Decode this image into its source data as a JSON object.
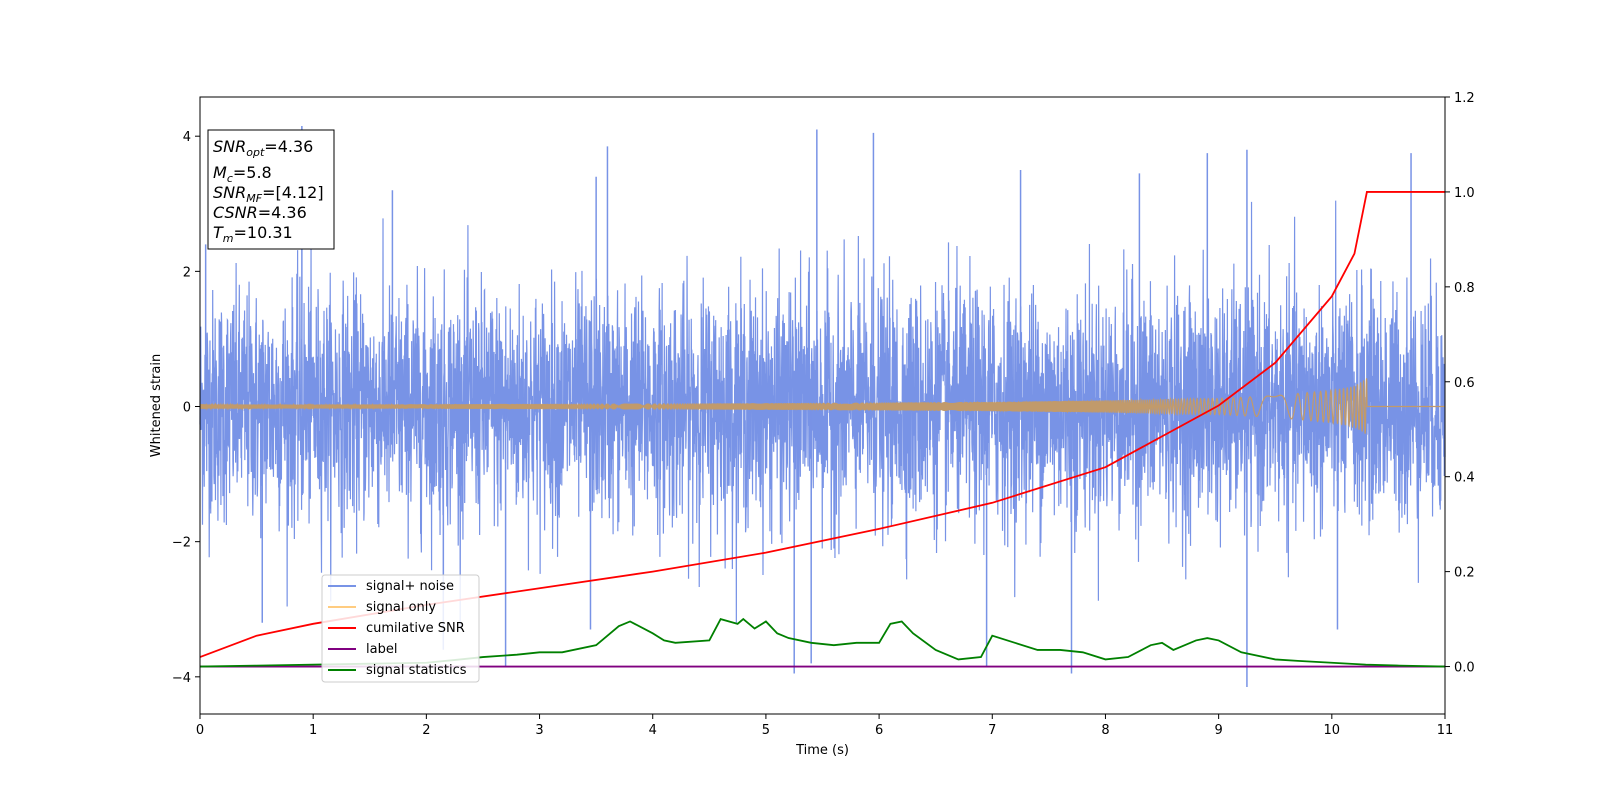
{
  "chart_data": {
    "type": "line",
    "xlabel": "Time (s)",
    "ylabel": "Whitened strain",
    "xlim": [
      0,
      11
    ],
    "ylim": [
      -4.55,
      4.58
    ],
    "y2lim": [
      -0.1,
      1.2
    ],
    "x_ticks": [
      0,
      1,
      2,
      3,
      4,
      5,
      6,
      7,
      8,
      9,
      10,
      11
    ],
    "y_ticks": [
      -4,
      -2,
      0,
      2,
      4
    ],
    "y2_ticks": [
      "0.0",
      "0.2",
      "0.4",
      "0.6",
      "0.8",
      "1.0",
      "1.2"
    ],
    "grid": false,
    "legend_position": "lower-left",
    "colors": {
      "noise": "#7893e6",
      "signal_only": "#c19a6b",
      "signal_only_legend": "#ffcc80",
      "cumulative": "#ff0000",
      "label": "#800080",
      "statistics": "#008000"
    },
    "series": [
      {
        "name": "signal+ noise",
        "axis": "left",
        "style": "dense noise band",
        "band_typical": [
          -1.9,
          1.9
        ],
        "peaks": [
          {
            "x": 0.05,
            "y": 2.4
          },
          {
            "x": 0.9,
            "y": 4.15
          },
          {
            "x": 1.7,
            "y": 3.2
          },
          {
            "x": 3.5,
            "y": 3.4
          },
          {
            "x": 3.6,
            "y": 3.85
          },
          {
            "x": 5.45,
            "y": 4.1
          },
          {
            "x": 5.95,
            "y": 4.05
          },
          {
            "x": 7.25,
            "y": 3.5
          },
          {
            "x": 8.3,
            "y": 3.45
          },
          {
            "x": 8.9,
            "y": 3.75
          },
          {
            "x": 9.25,
            "y": 3.8
          },
          {
            "x": 10.7,
            "y": 3.75
          }
        ],
        "troughs": [
          {
            "x": 0.55,
            "y": -3.2
          },
          {
            "x": 2.15,
            "y": -3.6
          },
          {
            "x": 2.7,
            "y": -3.85
          },
          {
            "x": 3.45,
            "y": -3.3
          },
          {
            "x": 5.25,
            "y": -3.95
          },
          {
            "x": 5.4,
            "y": -3.8
          },
          {
            "x": 6.95,
            "y": -3.85
          },
          {
            "x": 7.7,
            "y": -3.95
          },
          {
            "x": 9.25,
            "y": -4.15
          },
          {
            "x": 10.05,
            "y": -3.3
          }
        ]
      },
      {
        "name": "signal only",
        "axis": "left",
        "style": "chirp envelope",
        "x": [
          0,
          1,
          2,
          3,
          4,
          5,
          6,
          7,
          8,
          9,
          9.5,
          10,
          10.2,
          10.31
        ],
        "envelope": [
          0.03,
          0.03,
          0.035,
          0.04,
          0.045,
          0.05,
          0.06,
          0.07,
          0.09,
          0.12,
          0.16,
          0.24,
          0.3,
          0.42
        ],
        "end_time": 10.31
      },
      {
        "name": "cumilative SNR",
        "axis": "right",
        "x": [
          0,
          0.5,
          1,
          2,
          3,
          4,
          5,
          6,
          7,
          8,
          9,
          9.5,
          10,
          10.2,
          10.31,
          11
        ],
        "values": [
          0.02,
          0.065,
          0.09,
          0.13,
          0.165,
          0.2,
          0.24,
          0.29,
          0.345,
          0.42,
          0.55,
          0.64,
          0.78,
          0.87,
          1.0,
          1.0
        ]
      },
      {
        "name": "label",
        "axis": "right",
        "x": [
          0,
          11
        ],
        "values": [
          0.0,
          0.0
        ]
      },
      {
        "name": "signal statistics",
        "axis": "right",
        "x": [
          0,
          0.5,
          1,
          1.5,
          2,
          2.3,
          2.5,
          2.8,
          3.0,
          3.2,
          3.5,
          3.7,
          3.8,
          4.0,
          4.1,
          4.2,
          4.5,
          4.6,
          4.75,
          4.8,
          4.9,
          5.0,
          5.1,
          5.2,
          5.4,
          5.6,
          5.8,
          6.0,
          6.1,
          6.2,
          6.3,
          6.5,
          6.7,
          6.9,
          7.0,
          7.2,
          7.4,
          7.6,
          7.8,
          8.0,
          8.2,
          8.4,
          8.5,
          8.6,
          8.8,
          8.9,
          9.0,
          9.2,
          9.5,
          9.7,
          10.0,
          10.3,
          10.6,
          11
        ],
        "values": [
          0.0,
          0.002,
          0.004,
          0.006,
          0.008,
          0.015,
          0.02,
          0.025,
          0.03,
          0.03,
          0.045,
          0.085,
          0.095,
          0.07,
          0.055,
          0.05,
          0.055,
          0.1,
          0.09,
          0.1,
          0.08,
          0.095,
          0.07,
          0.06,
          0.05,
          0.045,
          0.05,
          0.05,
          0.09,
          0.095,
          0.07,
          0.035,
          0.015,
          0.02,
          0.065,
          0.05,
          0.035,
          0.035,
          0.03,
          0.015,
          0.02,
          0.045,
          0.05,
          0.035,
          0.055,
          0.06,
          0.055,
          0.03,
          0.015,
          0.012,
          0.008,
          0.004,
          0.002,
          0.0
        ]
      }
    ],
    "info_box": {
      "snr_opt": "=4.36",
      "mc": "=5.8",
      "snr_mf": "=[4.12]",
      "csnr": "=4.36",
      "tm": "=10.31"
    }
  }
}
